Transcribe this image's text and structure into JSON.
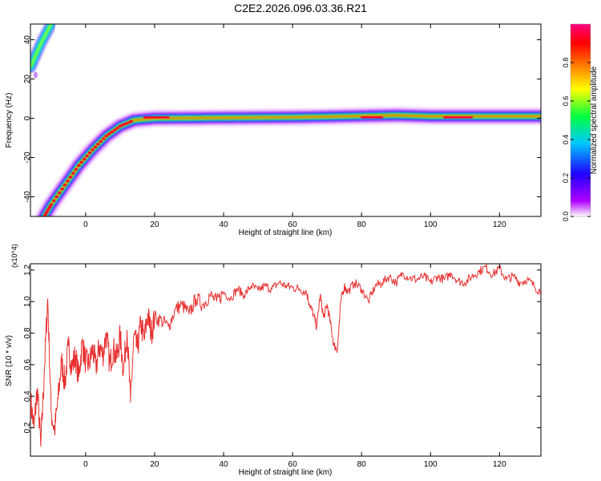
{
  "title": "C2E2.2026.096.03.36.R21",
  "chart_data": [
    {
      "type": "heatmap",
      "xlabel": "Height of straight line (km)",
      "ylabel": "Frequency (Hz)",
      "xlim": [
        -16,
        132
      ],
      "ylim": [
        -50,
        48
      ],
      "xticks": [
        0,
        20,
        40,
        60,
        80,
        100,
        120
      ],
      "yticks": [
        -40,
        -20,
        0,
        20,
        40
      ],
      "colorbar": {
        "label": "Normalized spectral amplitude",
        "range": [
          0,
          1
        ],
        "ticks": [
          "0.0",
          "0.2",
          "0.4",
          "0.6",
          "0.8"
        ],
        "colors": [
          "#ffffff",
          "#b000ff",
          "#2000ff",
          "#00c8ff",
          "#00ff40",
          "#ffff00",
          "#ff8000",
          "#ff0000",
          "#ff0080"
        ]
      },
      "ridge": [
        [
          -12,
          -50
        ],
        [
          -10,
          -44
        ],
        [
          -6,
          -34
        ],
        [
          -2,
          -24
        ],
        [
          2,
          -16
        ],
        [
          6,
          -9
        ],
        [
          10,
          -4
        ],
        [
          14,
          -1
        ],
        [
          20,
          0
        ],
        [
          60,
          0.5
        ],
        [
          90,
          1.5
        ],
        [
          100,
          1
        ],
        [
          132,
          1
        ]
      ],
      "upper_branch": [
        [
          -16,
          26
        ],
        [
          -13,
          38
        ],
        [
          -10,
          48
        ]
      ],
      "grid": false
    },
    {
      "type": "line",
      "xlabel": "Height of straight line (km)",
      "ylabel": "SNR (10 * v/v)",
      "y_multiplier": "(x10^4)",
      "xlim": [
        -16,
        132
      ],
      "ylim": [
        0.02,
        1.24
      ],
      "xticks": [
        0,
        20,
        40,
        60,
        80,
        100,
        120
      ],
      "yticks": [
        "0.2",
        "0.4",
        "0.6",
        "0.8",
        "1.0",
        "1.2"
      ],
      "color": "#e83030",
      "x": [
        -16,
        -15,
        -14,
        -13,
        -12,
        -11,
        -10,
        -9,
        -8,
        -7,
        -6,
        -5,
        -4,
        -3,
        -2,
        -1,
        0,
        1,
        2,
        3,
        4,
        5,
        6,
        7,
        8,
        9,
        10,
        11,
        12,
        13,
        14,
        15,
        16,
        17,
        18,
        19,
        20,
        22,
        24,
        26,
        28,
        30,
        32,
        34,
        36,
        38,
        40,
        42,
        44,
        46,
        48,
        50,
        52,
        54,
        56,
        58,
        60,
        62,
        64,
        65,
        66,
        67,
        68,
        69,
        70,
        71,
        72,
        73,
        74,
        75,
        76,
        78,
        80,
        82,
        84,
        86,
        88,
        90,
        92,
        94,
        96,
        98,
        100,
        102,
        104,
        106,
        108,
        110,
        112,
        114,
        116,
        118,
        120,
        122,
        124,
        126,
        128,
        130,
        132
      ],
      "y": [
        0.38,
        0.2,
        0.45,
        0.08,
        0.55,
        1.02,
        0.3,
        0.18,
        0.38,
        0.62,
        0.48,
        0.72,
        0.58,
        0.66,
        0.52,
        0.74,
        0.62,
        0.6,
        0.7,
        0.58,
        0.72,
        0.66,
        0.8,
        0.6,
        0.7,
        0.64,
        0.78,
        0.56,
        0.82,
        0.36,
        0.78,
        0.7,
        0.86,
        0.76,
        0.92,
        0.8,
        0.9,
        0.88,
        0.84,
        0.95,
        0.98,
        0.92,
        1.02,
        0.98,
        1.04,
        1.0,
        1.06,
        1.02,
        1.08,
        1.04,
        1.1,
        1.07,
        1.1,
        1.08,
        1.12,
        1.1,
        1.09,
        1.08,
        1.06,
        0.98,
        0.92,
        0.84,
        1.04,
        0.9,
        0.98,
        0.86,
        0.72,
        0.7,
        1.0,
        1.1,
        1.06,
        1.12,
        1.08,
        1.0,
        1.1,
        1.12,
        1.16,
        1.12,
        1.18,
        1.15,
        1.14,
        1.16,
        1.12,
        1.16,
        1.14,
        1.18,
        1.13,
        1.12,
        1.16,
        1.19,
        1.22,
        1.17,
        1.21,
        1.14,
        1.16,
        1.12,
        1.14,
        1.1,
        1.06
      ]
    }
  ]
}
